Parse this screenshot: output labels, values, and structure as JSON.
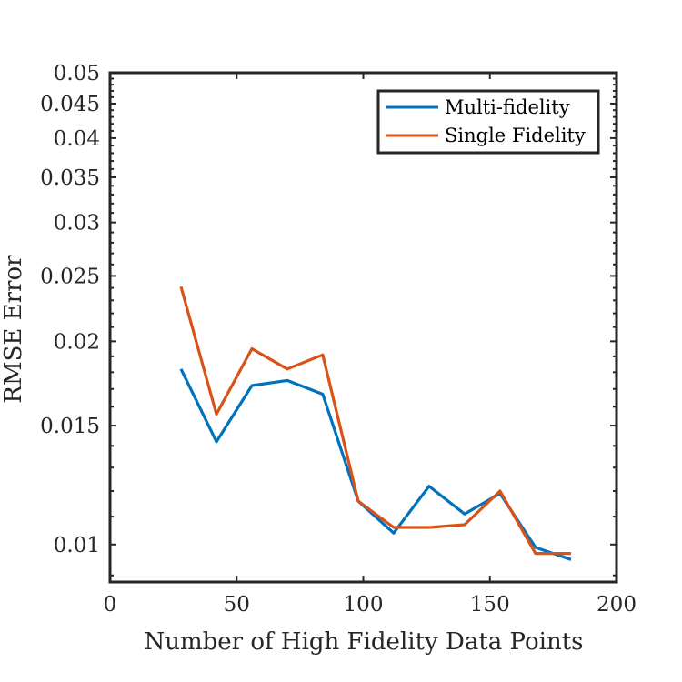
{
  "chart_data": {
    "type": "line",
    "xlabel": "Number of High Fidelity Data Points",
    "ylabel": "RMSE Error",
    "xlim": [
      0,
      200
    ],
    "ylim": [
      0.0088,
      0.05
    ],
    "yscale": "log",
    "grid": false,
    "legend_position": "top-right",
    "x_ticks": [
      0,
      50,
      100,
      150,
      200
    ],
    "x_tick_labels": [
      "0",
      "50",
      "100",
      "150",
      "200"
    ],
    "y_ticks": [
      0.01,
      0.015,
      0.02,
      0.025,
      0.03,
      0.035,
      0.04,
      0.045,
      0.05
    ],
    "y_tick_labels": [
      "0.01",
      "0.015",
      "0.02",
      "0.025",
      "0.03",
      "0.035",
      "0.04",
      "0.045",
      "0.05"
    ],
    "x": [
      28,
      42,
      56,
      70,
      84,
      98,
      112,
      126,
      140,
      154,
      168,
      182
    ],
    "series": [
      {
        "name": "Multi-fidelity",
        "color": "#0072BD",
        "values": [
          0.0182,
          0.0142,
          0.0172,
          0.0175,
          0.0167,
          0.0116,
          0.0104,
          0.0122,
          0.0111,
          0.0119,
          0.0099,
          0.0095
        ]
      },
      {
        "name": "Single Fidelity",
        "color": "#D95319",
        "values": [
          0.0241,
          0.0156,
          0.0195,
          0.0182,
          0.0191,
          0.0116,
          0.0106,
          0.0106,
          0.0107,
          0.012,
          0.0097,
          0.0097
        ]
      }
    ]
  }
}
